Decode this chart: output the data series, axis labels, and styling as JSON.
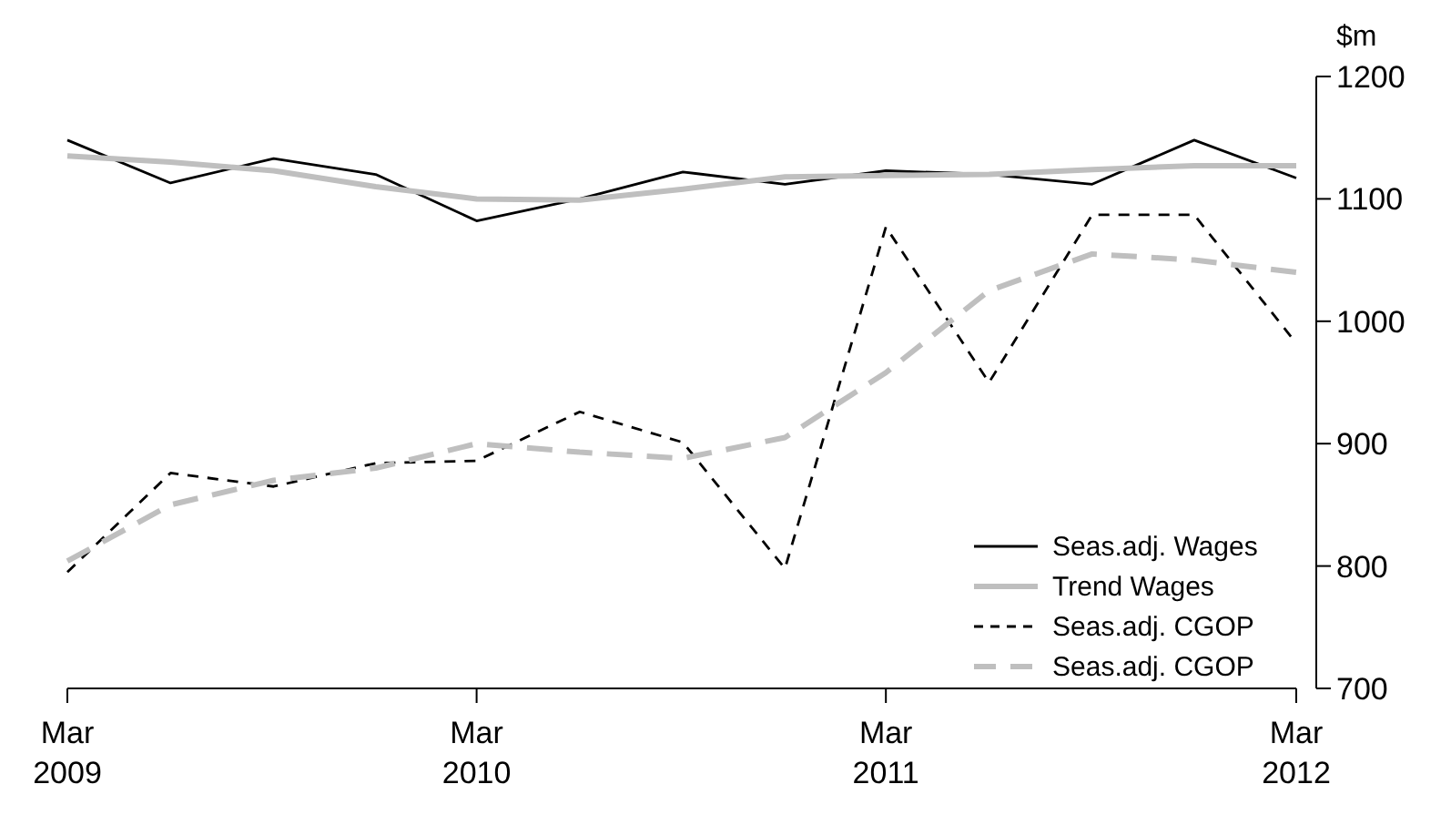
{
  "chart_data": {
    "type": "line",
    "ylabel": "$m",
    "x": [
      "2009-03",
      "2009-06",
      "2009-09",
      "2009-12",
      "2010-03",
      "2010-06",
      "2010-09",
      "2010-12",
      "2011-03",
      "2011-06",
      "2011-09",
      "2011-12",
      "2012-03"
    ],
    "series": [
      {
        "name": "Seas.adj. Wages",
        "color": "#000000",
        "line_style": "solid",
        "values": [
          1148,
          1113,
          1133,
          1120,
          1082,
          1100,
          1122,
          1112,
          1123,
          1120,
          1112,
          1148,
          1117
        ]
      },
      {
        "name": "Trend Wages",
        "color": "#bfbfbf",
        "line_style": "solid",
        "values": [
          1135,
          1130,
          1123,
          1110,
          1100,
          1099,
          1108,
          1118,
          1119,
          1120,
          1124,
          1127,
          1127
        ]
      },
      {
        "name": "Seas.adj. CGOP",
        "color": "#000000",
        "line_style": "dashed",
        "values": [
          795,
          876,
          865,
          884,
          886,
          926,
          901,
          798,
          1077,
          950,
          1087,
          1087,
          982
        ]
      },
      {
        "name": "Seas.adj. CGOP",
        "color": "#bfbfbf",
        "line_style": "dashed",
        "values": [
          804,
          850,
          870,
          880,
          900,
          893,
          888,
          905,
          958,
          1025,
          1055,
          1050,
          1040
        ]
      }
    ],
    "xlim": [
      "2009-03",
      "2012-03"
    ],
    "xticks": [
      {
        "value": "2009-03",
        "label": "Mar 2009"
      },
      {
        "value": "2010-03",
        "label": "Mar 2010"
      },
      {
        "value": "2011-03",
        "label": "Mar 2011"
      },
      {
        "value": "2012-03",
        "label": "Mar 2012"
      }
    ],
    "ylim": [
      700,
      1200
    ],
    "yticks": [
      700,
      800,
      900,
      1000,
      1100,
      1200
    ],
    "grid": false,
    "legend": "bottom right"
  }
}
